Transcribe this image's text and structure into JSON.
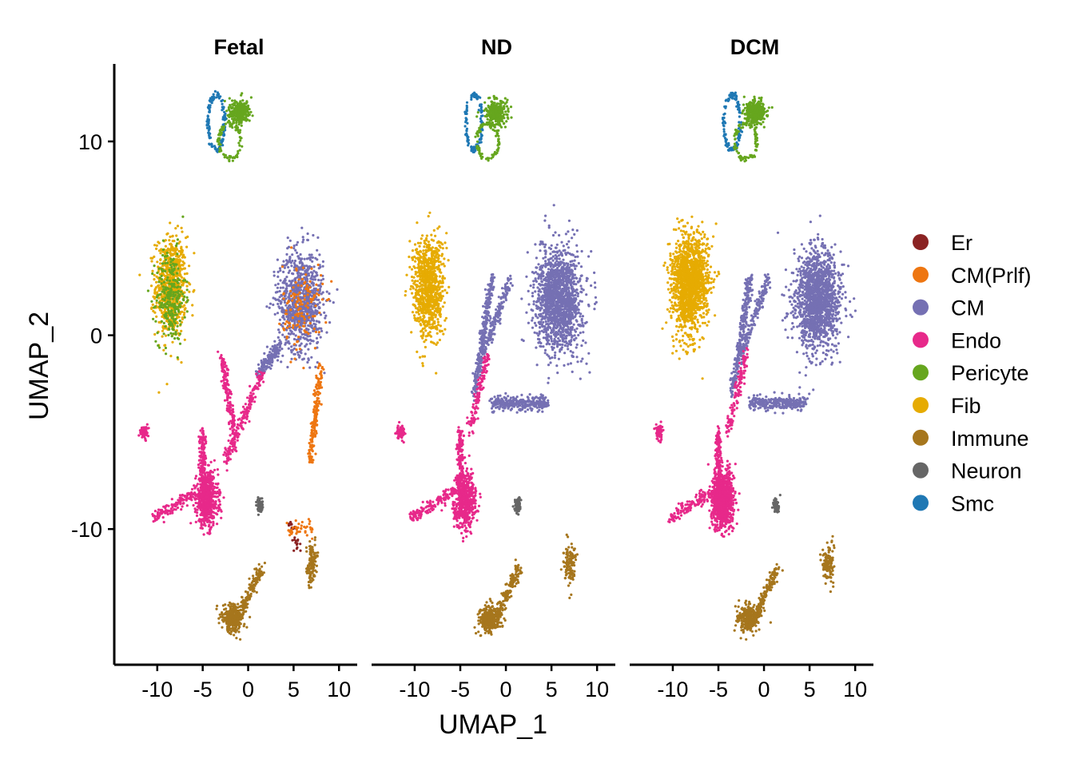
{
  "chart_data": {
    "type": "scatter",
    "facets": [
      "Fetal",
      "ND",
      "DCM"
    ],
    "xlabel": "UMAP_1",
    "ylabel": "UMAP_2",
    "xlim": [
      -13.5,
      12
    ],
    "ylim": [
      -17,
      14
    ],
    "x_ticks": [
      -10,
      -5,
      0,
      5,
      10
    ],
    "x_tick_labels": [
      "-10",
      "-5",
      "0",
      "5",
      "10"
    ],
    "y_ticks": [
      10,
      0,
      -10
    ],
    "y_tick_labels": [
      "10",
      "0",
      "-10"
    ],
    "legend_position": "right",
    "legend": [
      {
        "name": "Er",
        "color": "#8B2323"
      },
      {
        "name": "CM(Prlf)",
        "color": "#EE7611"
      },
      {
        "name": "CM",
        "color": "#7570B3"
      },
      {
        "name": "Endo",
        "color": "#E7298A"
      },
      {
        "name": "Pericyte",
        "color": "#66A61E"
      },
      {
        "name": "Fib",
        "color": "#E6AB02"
      },
      {
        "name": "Immune",
        "color": "#A6761D"
      },
      {
        "name": "Neuron",
        "color": "#666666"
      },
      {
        "name": "Smc",
        "color": "#1F78B4"
      }
    ]
  }
}
